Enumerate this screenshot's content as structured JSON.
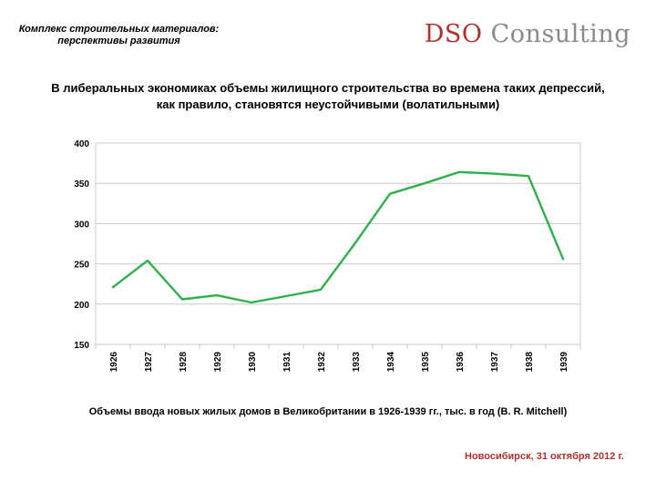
{
  "header": {
    "title_line1": "Комплекс строительных материалов:",
    "title_line2": "перспективы развития",
    "logo_part1": "DSO",
    "logo_part2": " Consulting"
  },
  "subtitle_line1": "В либеральных экономиках объемы жилищного строительства во времена таких депрессий,",
  "subtitle_line2": "как правило, становятся неустойчивыми (волатильными)",
  "caption": "Объемы ввода новых жилых домов в Великобритании в 1926-1939 гг., тыс. в год (B. R. Mitchell)",
  "footer_date": "Новосибирск, 31 октября 2012 г.",
  "colors": {
    "brand": "#b3312e",
    "line": "#2db24a",
    "grid": "#c8c8c8"
  },
  "chart_data": {
    "type": "line",
    "categories": [
      "1926",
      "1927",
      "1928",
      "1929",
      "1930",
      "1931",
      "1932",
      "1933",
      "1934",
      "1935",
      "1936",
      "1937",
      "1938",
      "1939"
    ],
    "series": [
      {
        "values": [
          221,
          254,
          206,
          211,
          202,
          210,
          218,
          276,
          337,
          350,
          364,
          362,
          359,
          256
        ]
      }
    ],
    "ylim": [
      150,
      400
    ],
    "yticks": [
      150,
      200,
      250,
      300,
      350,
      400
    ],
    "grid": true,
    "legend": "none"
  }
}
